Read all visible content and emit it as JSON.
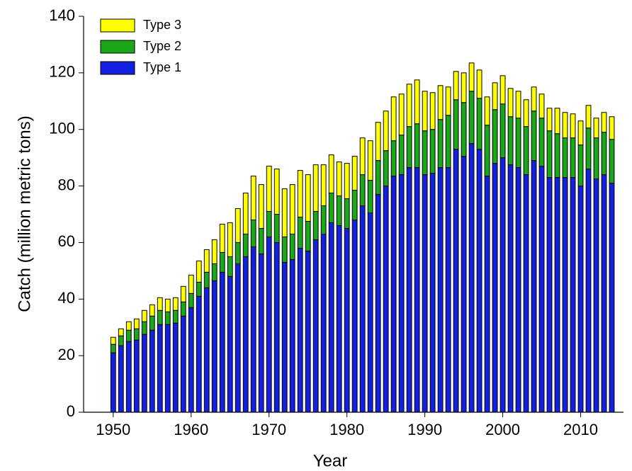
{
  "chart_data": {
    "type": "stacked_bar",
    "x": [
      1950,
      1951,
      1952,
      1953,
      1954,
      1955,
      1956,
      1957,
      1958,
      1959,
      1960,
      1961,
      1962,
      1963,
      1964,
      1965,
      1966,
      1967,
      1968,
      1969,
      1970,
      1971,
      1972,
      1973,
      1974,
      1975,
      1976,
      1977,
      1978,
      1979,
      1980,
      1981,
      1982,
      1983,
      1984,
      1985,
      1986,
      1987,
      1988,
      1989,
      1990,
      1991,
      1992,
      1993,
      1994,
      1995,
      1996,
      1997,
      1998,
      1999,
      2000,
      2001,
      2002,
      2003,
      2004,
      2005,
      2006,
      2007,
      2008,
      2009,
      2010,
      2011,
      2012,
      2013,
      2014
    ],
    "series": [
      {
        "name": "Type 1",
        "color": "#1420e0",
        "values": [
          21,
          23.5,
          25,
          25.5,
          27.5,
          29,
          31,
          31,
          31.5,
          34,
          37,
          41,
          44,
          46.5,
          49.5,
          48,
          52.5,
          55,
          58.5,
          56,
          62,
          60,
          53,
          54,
          58,
          57,
          61,
          63,
          67,
          66,
          65,
          68,
          73,
          70.5,
          77,
          80,
          83.5,
          84,
          86.5,
          86.5,
          84,
          84.5,
          86.5,
          86.5,
          93,
          90.5,
          95,
          93,
          83.5,
          88,
          90,
          87.5,
          86.5,
          84,
          89,
          87,
          83,
          83,
          83,
          83,
          80,
          86,
          82.5,
          84,
          81
        ]
      },
      {
        "name": "Type 2",
        "color": "#1aa81a",
        "values": [
          3,
          3.5,
          4,
          4,
          4.5,
          5,
          5,
          4.5,
          4.5,
          5,
          5,
          5,
          5.5,
          6,
          7,
          7,
          7.5,
          8,
          9.5,
          9,
          9,
          10,
          9,
          9,
          11,
          10.5,
          10,
          10,
          10.5,
          10.5,
          10.5,
          10.5,
          11,
          11.5,
          12,
          12.5,
          12.5,
          14,
          14.5,
          15.5,
          15.5,
          15.5,
          17,
          18.5,
          17.5,
          19,
          18.5,
          18,
          18,
          19,
          19,
          17,
          17.5,
          17,
          17.5,
          17,
          16.5,
          15.5,
          14,
          14,
          14.5,
          14.5,
          14.5,
          15,
          15.5
        ]
      },
      {
        "name": "Type 3",
        "color": "#ffff00",
        "values": [
          2.5,
          2.5,
          3,
          3.5,
          4,
          4,
          4.5,
          4.5,
          4.5,
          5.5,
          6.5,
          7.5,
          8,
          8.5,
          10,
          12,
          12,
          14.5,
          15.5,
          15.5,
          16,
          16,
          17,
          17.5,
          16.5,
          16.5,
          16.5,
          14.5,
          13.5,
          12,
          12.5,
          12,
          13,
          14,
          13.5,
          14,
          15.5,
          14.5,
          15,
          15.5,
          14,
          13,
          12,
          10,
          10,
          10.5,
          10,
          10,
          10,
          9.5,
          10,
          10,
          9.5,
          9.5,
          8.5,
          8.5,
          8,
          9,
          9,
          8.5,
          8.5,
          8,
          7,
          7,
          8
        ]
      }
    ],
    "xlabel": "Year",
    "ylabel": "Catch (million metric tons)",
    "xlim": [
      1946.2,
      2015.5
    ],
    "xticks": [
      1950,
      1960,
      1970,
      1980,
      1990,
      2000,
      2010
    ],
    "ylim": [
      0,
      140
    ],
    "yticks": [
      0,
      20,
      40,
      60,
      80,
      100,
      120,
      140
    ],
    "grid": false,
    "legend": "upper left"
  }
}
